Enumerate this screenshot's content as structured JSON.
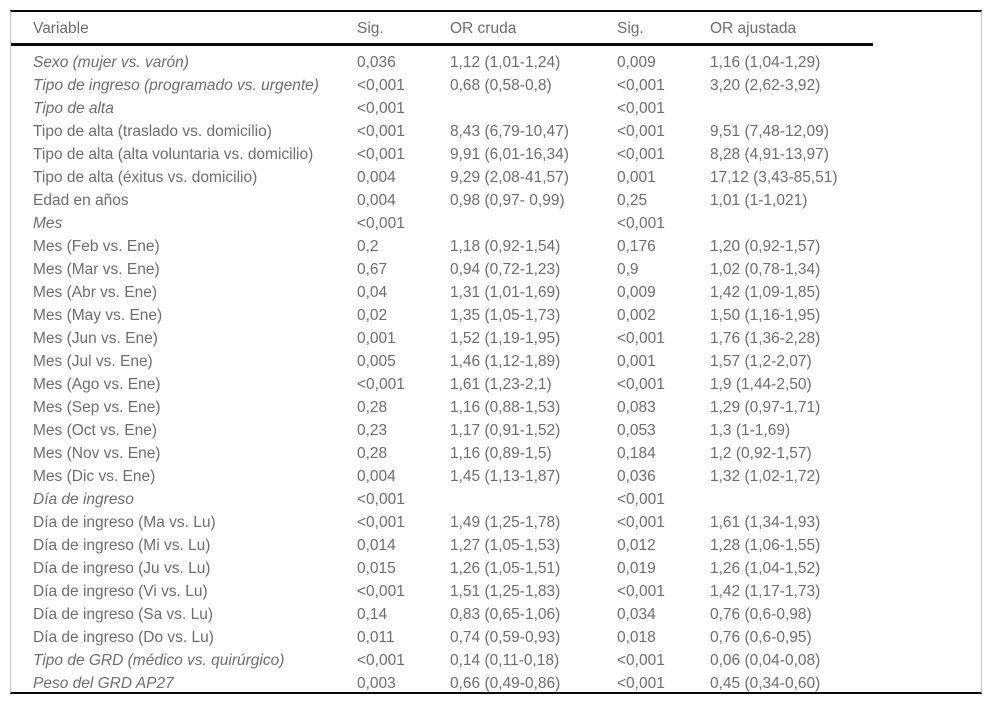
{
  "colors": {
    "text": "#6e6e6e",
    "rule": "#0a0a0a",
    "frame_border": "#c9c9c9",
    "background": "#ffffff"
  },
  "table": {
    "columns": [
      "Variable",
      "Sig.",
      "OR cruda",
      "Sig.",
      "OR ajustada"
    ],
    "rows": [
      {
        "variable": "Sexo (mujer vs. varón)",
        "sig_cruda": "0,036",
        "or_cruda": "1,12 (1,01-1,24)",
        "sig_ajustada": "0,009",
        "or_ajustada": "1,16 (1,04-1,29)",
        "italic": true
      },
      {
        "variable": "Tipo de ingreso (programado vs. urgente)",
        "sig_cruda": "<0,001",
        "or_cruda": "0,68 (0,58-0,8)",
        "sig_ajustada": "<0,001",
        "or_ajustada": "3,20 (2,62-3,92)",
        "italic": true
      },
      {
        "variable": "Tipo de alta",
        "sig_cruda": "<0,001",
        "or_cruda": "",
        "sig_ajustada": "<0,001",
        "or_ajustada": "",
        "italic": true
      },
      {
        "variable": "Tipo de alta (traslado vs. domicilio)",
        "sig_cruda": "<0,001",
        "or_cruda": "8,43 (6,79-10,47)",
        "sig_ajustada": "<0,001",
        "or_ajustada": "9,51 (7,48-12,09)",
        "italic": false
      },
      {
        "variable": "Tipo de alta (alta voluntaria vs. domicilio)",
        "sig_cruda": "<0,001",
        "or_cruda": "9,91 (6,01-16,34)",
        "sig_ajustada": "<0,001",
        "or_ajustada": "8,28 (4,91-13,97)",
        "italic": false
      },
      {
        "variable": "Tipo de alta (éxitus vs. domicilio)",
        "sig_cruda": "0,004",
        "or_cruda": "9,29 (2,08-41,57)",
        "sig_ajustada": "0,001",
        "or_ajustada": "17,12 (3,43-85,51)",
        "italic": false
      },
      {
        "variable": "Edad en años",
        "sig_cruda": "0,004",
        "or_cruda": "0,98 (0,97- 0,99)",
        "sig_ajustada": "0,25",
        "or_ajustada": "1,01 (1-1,021)",
        "italic": false
      },
      {
        "variable": "Mes",
        "sig_cruda": "<0,001",
        "or_cruda": "",
        "sig_ajustada": "<0,001",
        "or_ajustada": "",
        "italic": true
      },
      {
        "variable": "Mes (Feb vs. Ene)",
        "sig_cruda": "0,2",
        "or_cruda": "1,18 (0,92-1,54)",
        "sig_ajustada": "0,176",
        "or_ajustada": "1,20 (0,92-1,57)",
        "italic": false
      },
      {
        "variable": "Mes (Mar vs. Ene)",
        "sig_cruda": "0,67",
        "or_cruda": "0,94 (0,72-1,23)",
        "sig_ajustada": "0,9",
        "or_ajustada": "1,02 (0,78-1,34)",
        "italic": false
      },
      {
        "variable": "Mes (Abr vs. Ene)",
        "sig_cruda": "0,04",
        "or_cruda": "1,31 (1,01-1,69)",
        "sig_ajustada": "0,009",
        "or_ajustada": "1,42 (1,09-1,85)",
        "italic": false
      },
      {
        "variable": "Mes (May vs. Ene)",
        "sig_cruda": "0,02",
        "or_cruda": "1,35 (1,05-1,73)",
        "sig_ajustada": "0,002",
        "or_ajustada": "1,50 (1,16-1,95)",
        "italic": false
      },
      {
        "variable": "Mes (Jun vs. Ene)",
        "sig_cruda": "0,001",
        "or_cruda": "1,52 (1,19-1,95)",
        "sig_ajustada": "<0,001",
        "or_ajustada": "1,76 (1,36-2,28)",
        "italic": false
      },
      {
        "variable": "Mes (Jul vs. Ene)",
        "sig_cruda": "0,005",
        "or_cruda": "1,46 (1,12-1,89)",
        "sig_ajustada": "0,001",
        "or_ajustada": "1,57 (1,2-2,07)",
        "italic": false
      },
      {
        "variable": "Mes (Ago vs. Ene)",
        "sig_cruda": "<0,001",
        "or_cruda": "1,61 (1,23-2,1)",
        "sig_ajustada": "<0,001",
        "or_ajustada": "1,9 (1,44-2,50)",
        "italic": false
      },
      {
        "variable": "Mes (Sep vs. Ene)",
        "sig_cruda": "0,28",
        "or_cruda": "1,16 (0,88-1,53)",
        "sig_ajustada": "0,083",
        "or_ajustada": "1,29 (0,97-1,71)",
        "italic": false
      },
      {
        "variable": "Mes (Oct vs. Ene)",
        "sig_cruda": "0,23",
        "or_cruda": "1,17 (0,91-1,52)",
        "sig_ajustada": "0,053",
        "or_ajustada": "1,3 (1-1,69)",
        "italic": false
      },
      {
        "variable": "Mes (Nov vs. Ene)",
        "sig_cruda": "0,28",
        "or_cruda": "1,16 (0,89-1,5)",
        "sig_ajustada": "0,184",
        "or_ajustada": "1,2 (0,92-1,57)",
        "italic": false
      },
      {
        "variable": "Mes (Dic vs. Ene)",
        "sig_cruda": "0,004",
        "or_cruda": "1,45 (1,13-1,87)",
        "sig_ajustada": "0,036",
        "or_ajustada": "1,32 (1,02-1,72)",
        "italic": false
      },
      {
        "variable": "Día de ingreso",
        "sig_cruda": "<0,001",
        "or_cruda": "",
        "sig_ajustada": "<0,001",
        "or_ajustada": "",
        "italic": true
      },
      {
        "variable": "Día de ingreso (Ma vs. Lu)",
        "sig_cruda": "<0,001",
        "or_cruda": "1,49 (1,25-1,78)",
        "sig_ajustada": "<0,001",
        "or_ajustada": "1,61 (1,34-1,93)",
        "italic": false
      },
      {
        "variable": "Día de ingreso (Mi vs. Lu)",
        "sig_cruda": "0,014",
        "or_cruda": "1,27 (1,05-1,53)",
        "sig_ajustada": "0,012",
        "or_ajustada": "1,28 (1,06-1,55)",
        "italic": false
      },
      {
        "variable": "Día de ingreso (Ju vs. Lu)",
        "sig_cruda": "0,015",
        "or_cruda": "1,26 (1,05-1,51)",
        "sig_ajustada": "0,019",
        "or_ajustada": "1,26 (1,04-1,52)",
        "italic": false
      },
      {
        "variable": "Día de ingreso (Vi vs. Lu)",
        "sig_cruda": "<0,001",
        "or_cruda": "1,51 (1,25-1,83)",
        "sig_ajustada": "<0,001",
        "or_ajustada": "1,42 (1,17-1,73)",
        "italic": false
      },
      {
        "variable": "Día de ingreso (Sa vs. Lu)",
        "sig_cruda": "0,14",
        "or_cruda": "0,83 (0,65-1,06)",
        "sig_ajustada": "0,034",
        "or_ajustada": "0,76 (0,6-0,98)",
        "italic": false
      },
      {
        "variable": "Día de ingreso (Do vs. Lu)",
        "sig_cruda": "0,011",
        "or_cruda": "0,74 (0,59-0,93)",
        "sig_ajustada": "0,018",
        "or_ajustada": "0,76 (0,6-0,95)",
        "italic": false
      },
      {
        "variable": "Tipo de GRD (médico vs. quirúrgico)",
        "sig_cruda": "<0,001",
        "or_cruda": "0,14 (0,11-0,18)",
        "sig_ajustada": "<0,001",
        "or_ajustada": "0,06 (0,04-0,08)",
        "italic": true
      },
      {
        "variable": "Peso del GRD AP27",
        "sig_cruda": "0,003",
        "or_cruda": "0,66 (0,49-0,86)",
        "sig_ajustada": "<0,001",
        "or_ajustada": "0,45 (0,34-0,60)",
        "italic": true
      }
    ]
  }
}
